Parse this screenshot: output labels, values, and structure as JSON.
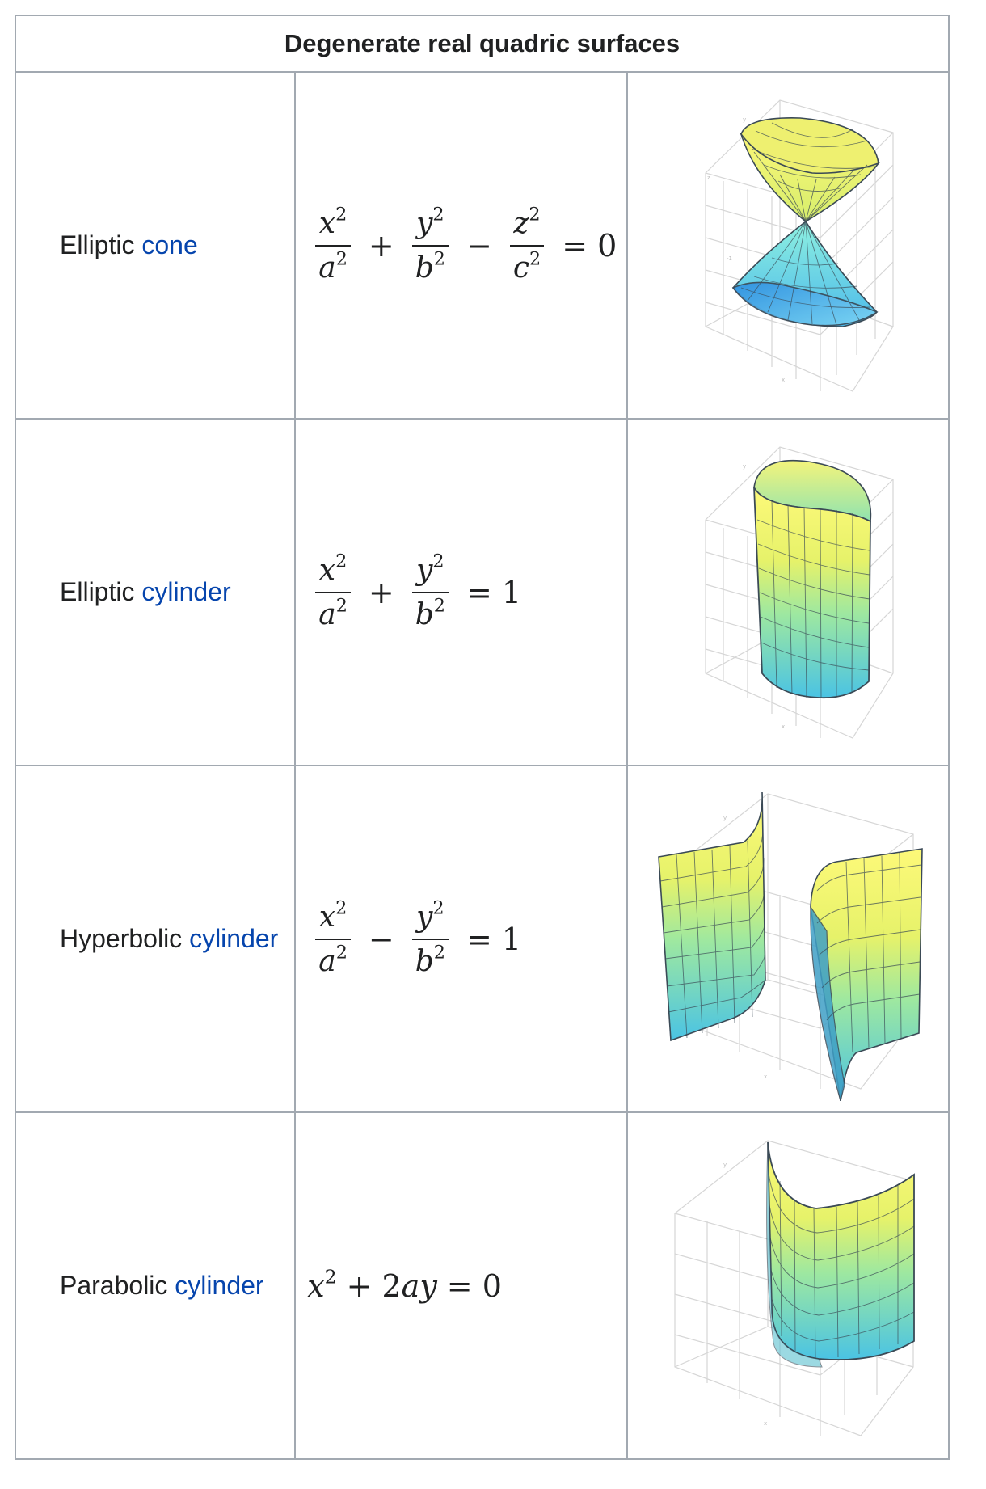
{
  "table": {
    "caption": "Degenerate real quadric surfaces",
    "rows": [
      {
        "name_prefix": "Elliptic",
        "name_link": "cone",
        "equation": "x^2/a^2 + y^2/b^2 - z^2/c^2 = 0",
        "eq": {
          "t1n": "x",
          "t1d": "a",
          "op1": "+",
          "t2n": "y",
          "t2d": "b",
          "op2": "−",
          "t3n": "z",
          "t3d": "c",
          "exp": "2",
          "rhs": "= 0"
        }
      },
      {
        "name_prefix": "Elliptic",
        "name_link": "cylinder",
        "equation": "x^2/a^2 + y^2/b^2 = 1",
        "eq": {
          "t1n": "x",
          "t1d": "a",
          "op1": "+",
          "t2n": "y",
          "t2d": "b",
          "exp": "2",
          "rhs": "= 1"
        }
      },
      {
        "name_prefix": "Hyperbolic",
        "name_link": "cylinder",
        "equation": "x^2/a^2 - y^2/b^2 = 1",
        "eq": {
          "t1n": "x",
          "t1d": "a",
          "op1": "−",
          "t2n": "y",
          "t2d": "b",
          "exp": "2",
          "rhs": "= 1"
        }
      },
      {
        "name_prefix": "Parabolic",
        "name_link": "cylinder",
        "equation": "x^2 + 2ay = 0",
        "eq": {
          "base": "x",
          "exp": "2",
          "plus": "+",
          "coef": "2",
          "vars": "ay",
          "rhs": "= 0"
        }
      }
    ]
  },
  "plot_axis_labels": {
    "x": "x",
    "y": "y",
    "z": "z",
    "tick": "-1"
  },
  "colors": {
    "border": "#a2a9b1",
    "link": "#0645ad",
    "surface_top": "#fbf576",
    "surface_bottom": "#4fc9e8",
    "mesh": "#3b4a56",
    "box": "#d6d6d6"
  }
}
